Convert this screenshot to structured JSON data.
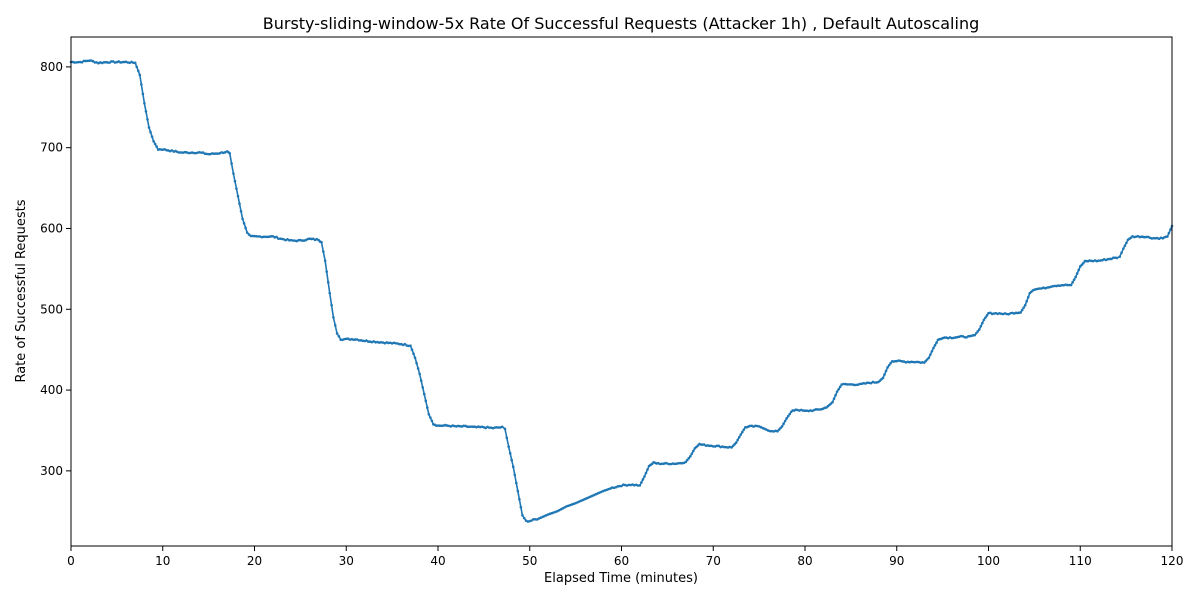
{
  "chart_data": {
    "type": "line",
    "title": "Bursty-sliding-window-5x Rate Of Successful Requests (Attacker 1h) , Default Autoscaling",
    "xlabel": "Elapsed Time (minutes)",
    "ylabel": "Rate of Successful Requests",
    "xlim": [
      0,
      120
    ],
    "ylim": [
      207,
      837
    ],
    "xticks": [
      0,
      10,
      20,
      30,
      40,
      50,
      60,
      70,
      80,
      90,
      100,
      110,
      120
    ],
    "yticks": [
      300,
      400,
      500,
      600,
      700,
      800
    ],
    "grid": false,
    "series_color": "#1f77b4",
    "series": [
      {
        "points": [
          [
            0,
            806
          ],
          [
            1,
            806
          ],
          [
            2,
            808
          ],
          [
            3,
            805
          ],
          [
            4,
            806
          ],
          [
            5,
            806
          ],
          [
            6,
            806
          ],
          [
            7,
            805
          ],
          [
            7.5,
            790
          ],
          [
            8,
            755
          ],
          [
            8.5,
            725
          ],
          [
            9,
            708
          ],
          [
            9.5,
            698
          ],
          [
            10,
            698
          ],
          [
            11,
            696
          ],
          [
            12,
            694
          ],
          [
            13,
            694
          ],
          [
            14,
            694
          ],
          [
            15,
            692
          ],
          [
            16,
            693
          ],
          [
            17,
            695
          ],
          [
            17.3,
            693
          ],
          [
            17.7,
            668
          ],
          [
            18.2,
            640
          ],
          [
            18.7,
            612
          ],
          [
            19.2,
            595
          ],
          [
            19.6,
            590
          ],
          [
            20,
            590
          ],
          [
            21,
            590
          ],
          [
            22,
            590
          ],
          [
            23,
            587
          ],
          [
            24,
            585
          ],
          [
            25,
            585
          ],
          [
            26,
            587
          ],
          [
            27,
            586
          ],
          [
            27.3,
            583
          ],
          [
            27.7,
            560
          ],
          [
            28.2,
            520
          ],
          [
            28.6,
            490
          ],
          [
            29,
            470
          ],
          [
            29.4,
            463
          ],
          [
            30,
            463
          ],
          [
            31,
            463
          ],
          [
            32,
            461
          ],
          [
            33,
            460
          ],
          [
            34,
            459
          ],
          [
            35,
            458
          ],
          [
            36,
            457
          ],
          [
            37,
            455
          ],
          [
            37.5,
            440
          ],
          [
            38,
            420
          ],
          [
            38.5,
            395
          ],
          [
            39,
            370
          ],
          [
            39.5,
            358
          ],
          [
            40,
            356
          ],
          [
            41,
            356
          ],
          [
            42,
            355
          ],
          [
            43,
            355
          ],
          [
            44,
            354
          ],
          [
            45,
            354
          ],
          [
            46,
            353
          ],
          [
            47,
            354
          ],
          [
            47.3,
            352
          ],
          [
            47.7,
            330
          ],
          [
            48.2,
            305
          ],
          [
            48.7,
            275
          ],
          [
            49.2,
            245
          ],
          [
            49.6,
            238
          ],
          [
            50,
            238
          ],
          [
            51,
            241
          ],
          [
            52,
            246
          ],
          [
            53,
            250
          ],
          [
            54,
            256
          ],
          [
            55,
            260
          ],
          [
            56,
            265
          ],
          [
            57,
            270
          ],
          [
            58,
            275
          ],
          [
            59,
            279
          ],
          [
            60,
            282
          ],
          [
            61,
            283
          ],
          [
            62,
            282
          ],
          [
            62.5,
            293
          ],
          [
            63,
            306
          ],
          [
            63.5,
            310
          ],
          [
            64,
            309
          ],
          [
            65,
            309
          ],
          [
            66,
            309
          ],
          [
            67,
            311
          ],
          [
            67.5,
            318
          ],
          [
            68,
            328
          ],
          [
            68.5,
            333
          ],
          [
            69,
            332
          ],
          [
            70,
            331
          ],
          [
            71,
            330
          ],
          [
            72,
            329
          ],
          [
            72.5,
            335
          ],
          [
            73,
            345
          ],
          [
            73.5,
            354
          ],
          [
            74,
            355
          ],
          [
            75,
            355
          ],
          [
            76,
            350
          ],
          [
            77,
            349
          ],
          [
            77.5,
            355
          ],
          [
            78,
            365
          ],
          [
            78.5,
            373
          ],
          [
            79,
            376
          ],
          [
            80,
            374
          ],
          [
            81,
            375
          ],
          [
            82,
            377
          ],
          [
            82.5,
            380
          ],
          [
            83,
            385
          ],
          [
            83.5,
            398
          ],
          [
            84,
            407
          ],
          [
            85,
            407
          ],
          [
            86,
            407
          ],
          [
            87,
            409
          ],
          [
            88,
            410
          ],
          [
            88.5,
            415
          ],
          [
            89,
            428
          ],
          [
            89.5,
            436
          ],
          [
            90,
            436
          ],
          [
            91,
            435
          ],
          [
            92,
            435
          ],
          [
            93,
            434
          ],
          [
            93.5,
            440
          ],
          [
            94,
            452
          ],
          [
            94.5,
            462
          ],
          [
            95,
            465
          ],
          [
            96,
            465
          ],
          [
            97,
            466
          ],
          [
            98,
            466
          ],
          [
            98.5,
            468
          ],
          [
            99,
            475
          ],
          [
            99.5,
            487
          ],
          [
            100,
            495
          ],
          [
            101,
            495
          ],
          [
            102,
            494
          ],
          [
            103,
            496
          ],
          [
            103.5,
            496
          ],
          [
            104,
            505
          ],
          [
            104.5,
            520
          ],
          [
            105,
            525
          ],
          [
            106,
            526
          ],
          [
            107,
            529
          ],
          [
            108,
            530
          ],
          [
            109,
            530
          ],
          [
            109.5,
            540
          ],
          [
            110,
            553
          ],
          [
            110.5,
            559
          ],
          [
            111,
            560
          ],
          [
            112,
            560
          ],
          [
            113,
            562
          ],
          [
            114,
            564
          ],
          [
            114.3,
            565
          ],
          [
            114.7,
            575
          ],
          [
            115.2,
            586
          ],
          [
            115.7,
            590
          ],
          [
            116.5,
            590
          ],
          [
            117,
            590
          ],
          [
            118,
            588
          ],
          [
            119,
            588
          ],
          [
            119.5,
            590
          ],
          [
            120,
            603
          ]
        ]
      }
    ]
  }
}
